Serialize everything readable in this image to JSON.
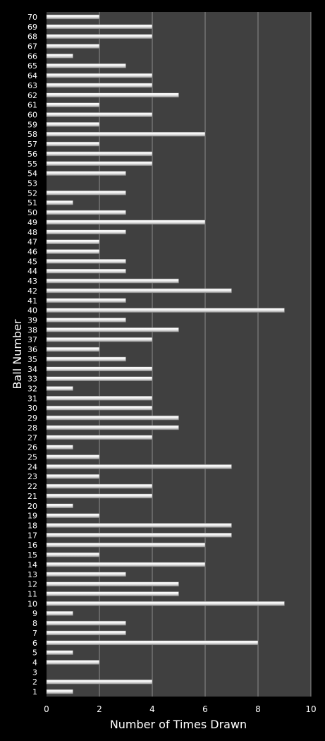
{
  "chart_data": {
    "type": "bar",
    "orientation": "horizontal",
    "xlabel": "Number of Times Drawn",
    "ylabel": "Ball Number",
    "xlim": [
      0,
      10
    ],
    "xticks": [
      0,
      2,
      4,
      6,
      8,
      10
    ],
    "grid": "vertical",
    "legend": "none",
    "colors": {
      "background": "#000000",
      "plot_area": "#404040",
      "bar": "#e6e6e6",
      "grid": "#8c8c8c",
      "text": "#ffffff"
    },
    "categories": [
      "1",
      "2",
      "3",
      "4",
      "5",
      "6",
      "7",
      "8",
      "9",
      "10",
      "11",
      "12",
      "13",
      "14",
      "15",
      "16",
      "17",
      "18",
      "19",
      "20",
      "21",
      "22",
      "23",
      "24",
      "25",
      "26",
      "27",
      "28",
      "29",
      "30",
      "31",
      "32",
      "33",
      "34",
      "35",
      "36",
      "37",
      "38",
      "39",
      "40",
      "41",
      "42",
      "43",
      "44",
      "45",
      "46",
      "47",
      "48",
      "49",
      "50",
      "51",
      "52",
      "53",
      "54",
      "55",
      "56",
      "57",
      "58",
      "59",
      "60",
      "61",
      "62",
      "63",
      "64",
      "65",
      "66",
      "67",
      "68",
      "69",
      "70"
    ],
    "values": [
      1,
      4,
      0,
      2,
      1,
      8,
      3,
      3,
      1,
      9,
      5,
      5,
      3,
      6,
      2,
      6,
      7,
      7,
      2,
      1,
      4,
      4,
      2,
      7,
      2,
      1,
      4,
      5,
      5,
      4,
      4,
      1,
      4,
      4,
      3,
      2,
      4,
      5,
      3,
      9,
      3,
      7,
      5,
      3,
      3,
      2,
      2,
      3,
      6,
      3,
      1,
      3,
      0,
      3,
      4,
      4,
      2,
      6,
      2,
      4,
      2,
      5,
      4,
      4,
      3,
      1,
      2,
      4,
      4,
      2
    ]
  }
}
